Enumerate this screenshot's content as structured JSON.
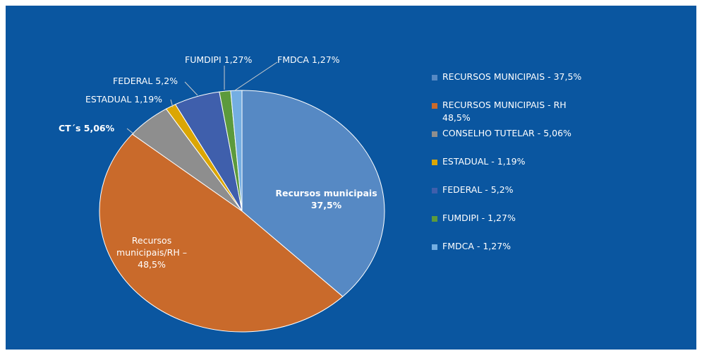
{
  "chart_data": {
    "type": "pie",
    "categories": [
      "RECURSOS MUNICIPAIS - 37,5%",
      "RECURSOS MUNICIPAIS - RH 48,5%",
      "CONSELHO TUTELAR - 5,06%",
      "ESTADUAL - 1,19%",
      "FEDERAL - 5,2%",
      "FUMDIPI - 1,27%",
      "FMDCA - 1,27%"
    ],
    "values": [
      37.5,
      48.5,
      5.06,
      1.19,
      5.2,
      1.27,
      1.27
    ],
    "value_labels": [
      "Recursos municipais 37,5%",
      "Recursos municipais/RH – 48,5%",
      "CT´s 5,06%",
      "ESTADUAL 1,19%",
      "FEDERAL 5,2%",
      "FUMDIPI 1,27%",
      "FMDCA 1,27%"
    ],
    "colors": [
      "#5689c4",
      "#c96a2b",
      "#8e8e8e",
      "#dba604",
      "#3f5fac",
      "#5c9a3c",
      "#74aee2"
    ],
    "legend": "right"
  }
}
